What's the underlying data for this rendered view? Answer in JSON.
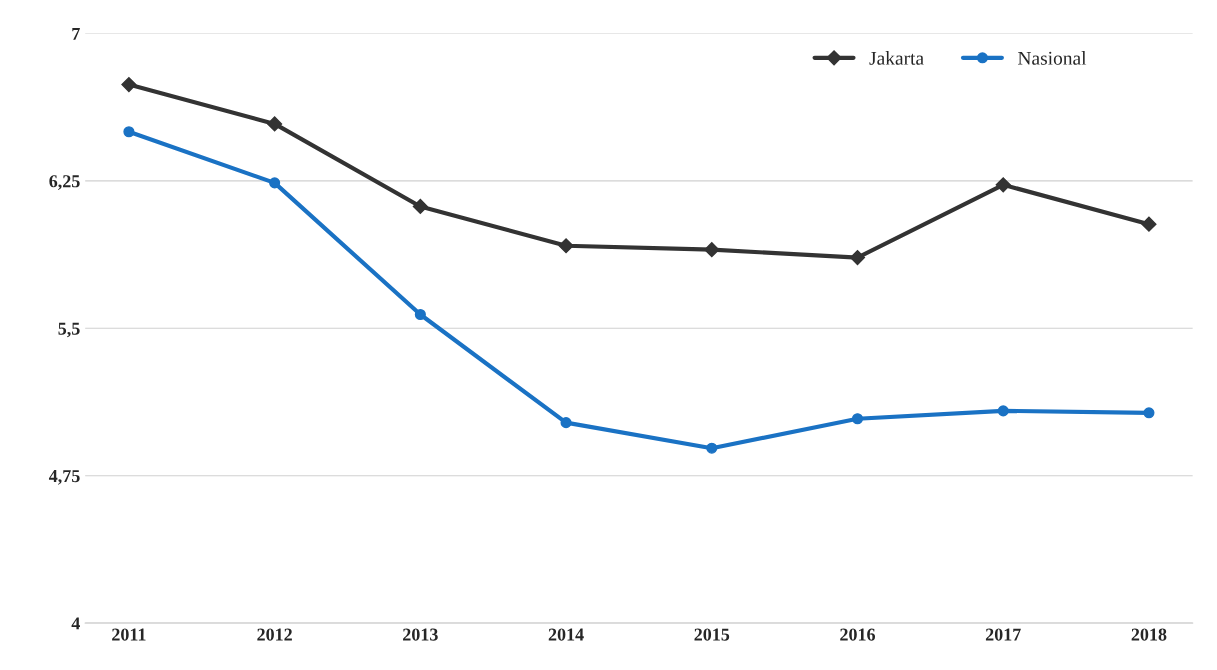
{
  "chart_data": {
    "type": "line",
    "categories": [
      "2011",
      "2012",
      "2013",
      "2014",
      "2015",
      "2016",
      "2017",
      "2018"
    ],
    "series": [
      {
        "name": "Jakarta",
        "color": "#333333",
        "marker": "diamond",
        "values": [
          6.74,
          6.54,
          6.12,
          5.92,
          5.9,
          5.86,
          6.23,
          6.03
        ]
      },
      {
        "name": "Nasional",
        "color": "#1a72c4",
        "marker": "circle",
        "values": [
          6.5,
          6.24,
          5.57,
          5.02,
          4.89,
          5.04,
          5.08,
          5.07
        ]
      }
    ],
    "ylim": [
      4,
      7
    ],
    "yticks": [
      4,
      {
        "value": 4.75,
        "label": "4,75"
      },
      {
        "value": 5.5,
        "label": "5,5"
      },
      {
        "value": 6.25,
        "label": "6,25"
      },
      7
    ],
    "grid": "y",
    "legend": "top right",
    "line_style": "solid"
  }
}
